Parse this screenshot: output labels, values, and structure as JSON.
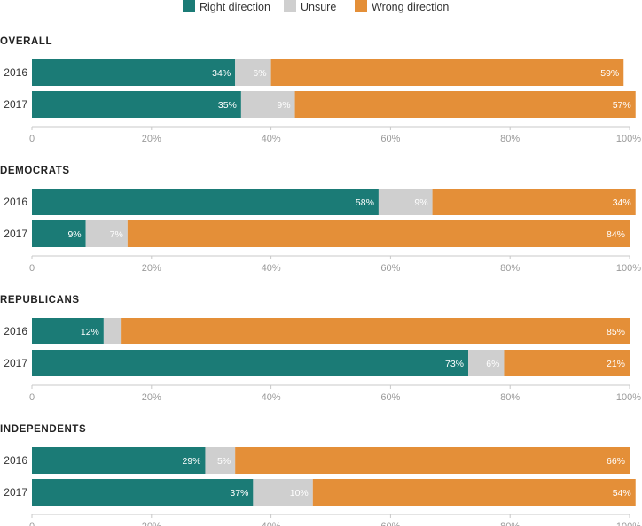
{
  "chart_data": {
    "type": "bar",
    "orientation": "horizontal",
    "stacked": true,
    "legend": {
      "placement": "top-center",
      "entries": [
        {
          "key": "right",
          "label": "Right direction",
          "color": "#1b7b76"
        },
        {
          "key": "unsure",
          "label": "Unsure",
          "color": "#cfcfcf"
        },
        {
          "key": "wrong",
          "label": "Wrong direction",
          "color": "#e48f38"
        }
      ]
    },
    "xlim": [
      0,
      100
    ],
    "ticks": [
      {
        "value": 0,
        "label": "0"
      },
      {
        "value": 20,
        "label": "20%"
      },
      {
        "value": 40,
        "label": "40%"
      },
      {
        "value": 60,
        "label": "60%"
      },
      {
        "value": 80,
        "label": "80%"
      },
      {
        "value": 100,
        "label": "100%"
      }
    ],
    "grid": false,
    "panels": [
      {
        "title": "OVERALL",
        "rows": [
          {
            "year": "2016",
            "right": 34,
            "right_label": "34%",
            "unsure": 6,
            "unsure_label": "6%",
            "wrong": 59,
            "wrong_label": "59%"
          },
          {
            "year": "2017",
            "right": 35,
            "right_label": "35%",
            "unsure": 9,
            "unsure_label": "9%",
            "wrong": 57,
            "wrong_label": "57%"
          }
        ]
      },
      {
        "title": "DEMOCRATS",
        "rows": [
          {
            "year": "2016",
            "right": 58,
            "right_label": "58%",
            "unsure": 9,
            "unsure_label": "9%",
            "wrong": 34,
            "wrong_label": "34%"
          },
          {
            "year": "2017",
            "right": 9,
            "right_label": "9%",
            "unsure": 7,
            "unsure_label": "7%",
            "wrong": 84,
            "wrong_label": "84%"
          }
        ]
      },
      {
        "title": "REPUBLICANS",
        "rows": [
          {
            "year": "2016",
            "right": 12,
            "right_label": "12%",
            "unsure": 3,
            "unsure_label": "",
            "wrong": 85,
            "wrong_label": "85%"
          },
          {
            "year": "2017",
            "right": 73,
            "right_label": "73%",
            "unsure": 6,
            "unsure_label": "6%",
            "wrong": 21,
            "wrong_label": "21%"
          }
        ]
      },
      {
        "title": "INDEPENDENTS",
        "rows": [
          {
            "year": "2016",
            "right": 29,
            "right_label": "29%",
            "unsure": 5,
            "unsure_label": "5%",
            "wrong": 66,
            "wrong_label": "66%"
          },
          {
            "year": "2017",
            "right": 37,
            "right_label": "37%",
            "unsure": 10,
            "unsure_label": "10%",
            "wrong": 54,
            "wrong_label": "54%"
          }
        ]
      }
    ]
  }
}
